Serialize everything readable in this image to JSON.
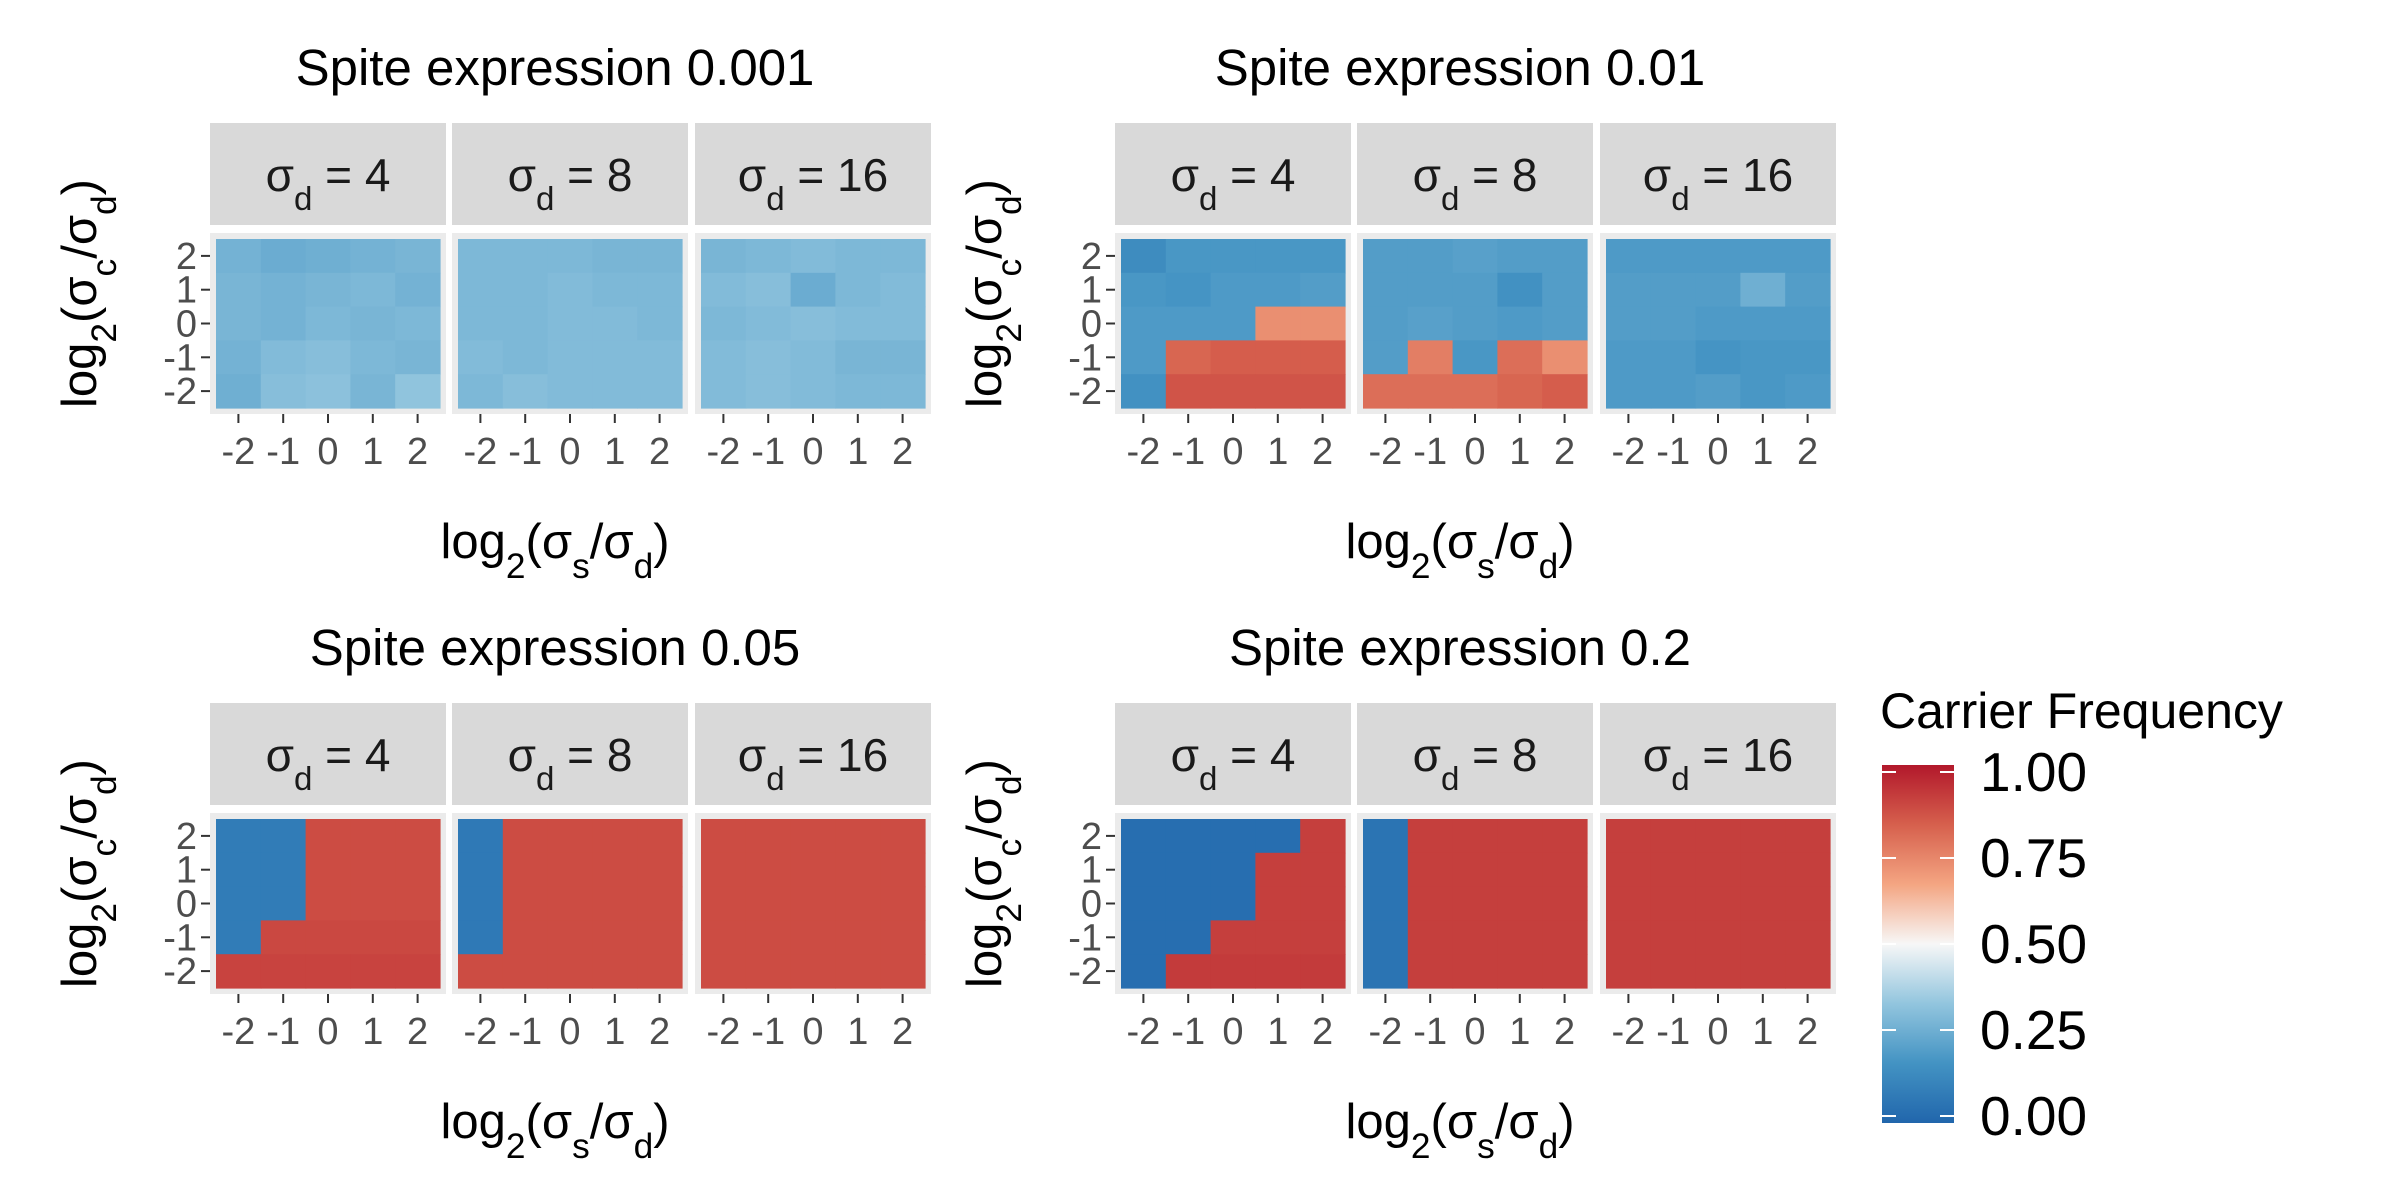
{
  "chart_data": {
    "type": "heatmap",
    "panels": [
      {
        "title": "Spite expression 0.001",
        "facets": [
          {
            "label": "σd = 4",
            "values": [
              [
                0.27,
                0.25,
                0.26,
                0.27,
                0.28
              ],
              [
                0.28,
                0.27,
                0.28,
                0.29,
                0.27
              ],
              [
                0.28,
                0.27,
                0.29,
                0.28,
                0.29
              ],
              [
                0.27,
                0.3,
                0.31,
                0.29,
                0.28
              ],
              [
                0.26,
                0.31,
                0.32,
                0.28,
                0.33
              ]
            ]
          },
          {
            "label": "σd = 8",
            "values": [
              [
                0.29,
                0.29,
                0.29,
                0.28,
                0.28
              ],
              [
                0.29,
                0.29,
                0.3,
                0.29,
                0.29
              ],
              [
                0.29,
                0.29,
                0.3,
                0.3,
                0.29
              ],
              [
                0.3,
                0.29,
                0.3,
                0.3,
                0.3
              ],
              [
                0.29,
                0.31,
                0.3,
                0.3,
                0.3
              ]
            ]
          },
          {
            "label": "σd = 16",
            "values": [
              [
                0.28,
                0.29,
                0.3,
                0.29,
                0.29
              ],
              [
                0.3,
                0.31,
                0.25,
                0.29,
                0.3
              ],
              [
                0.29,
                0.3,
                0.31,
                0.3,
                0.3
              ],
              [
                0.3,
                0.31,
                0.3,
                0.28,
                0.28
              ],
              [
                0.3,
                0.31,
                0.3,
                0.29,
                0.29
              ]
            ]
          }
        ]
      },
      {
        "title": "Spite expression 0.01",
        "facets": [
          {
            "label": "σd = 4",
            "values": [
              [
                0.14,
                0.18,
                0.18,
                0.18,
                0.18
              ],
              [
                0.18,
                0.17,
                0.19,
                0.19,
                0.2
              ],
              [
                0.19,
                0.19,
                0.19,
                0.72,
                0.72
              ],
              [
                0.19,
                0.82,
                0.84,
                0.84,
                0.84
              ],
              [
                0.16,
                0.86,
                0.86,
                0.86,
                0.86
              ]
            ]
          },
          {
            "label": "σd = 8",
            "values": [
              [
                0.2,
                0.2,
                0.21,
                0.2,
                0.2
              ],
              [
                0.2,
                0.2,
                0.2,
                0.16,
                0.2
              ],
              [
                0.2,
                0.21,
                0.2,
                0.19,
                0.2
              ],
              [
                0.2,
                0.76,
                0.18,
                0.8,
                0.72
              ],
              [
                0.8,
                0.8,
                0.8,
                0.82,
                0.84
              ]
            ]
          },
          {
            "label": "σd = 16",
            "values": [
              [
                0.19,
                0.19,
                0.19,
                0.19,
                0.19
              ],
              [
                0.2,
                0.2,
                0.2,
                0.26,
                0.2
              ],
              [
                0.2,
                0.2,
                0.19,
                0.19,
                0.19
              ],
              [
                0.19,
                0.19,
                0.17,
                0.18,
                0.18
              ],
              [
                0.19,
                0.19,
                0.2,
                0.18,
                0.19
              ]
            ]
          }
        ]
      },
      {
        "title": "Spite expression 0.05",
        "facets": [
          {
            "label": "σd = 4",
            "values": [
              [
                0.08,
                0.08,
                0.88,
                0.88,
                0.88
              ],
              [
                0.08,
                0.08,
                0.88,
                0.88,
                0.88
              ],
              [
                0.08,
                0.08,
                0.88,
                0.88,
                0.88
              ],
              [
                0.08,
                0.89,
                0.89,
                0.89,
                0.89
              ],
              [
                0.9,
                0.9,
                0.9,
                0.9,
                0.9
              ]
            ]
          },
          {
            "label": "σd = 8",
            "values": [
              [
                0.07,
                0.88,
                0.88,
                0.88,
                0.88
              ],
              [
                0.07,
                0.88,
                0.88,
                0.88,
                0.88
              ],
              [
                0.07,
                0.88,
                0.88,
                0.88,
                0.88
              ],
              [
                0.07,
                0.88,
                0.88,
                0.88,
                0.88
              ],
              [
                0.88,
                0.88,
                0.88,
                0.88,
                0.88
              ]
            ]
          },
          {
            "label": "σd = 16",
            "values": [
              [
                0.88,
                0.88,
                0.88,
                0.88,
                0.88
              ],
              [
                0.88,
                0.88,
                0.88,
                0.88,
                0.88
              ],
              [
                0.88,
                0.88,
                0.88,
                0.88,
                0.88
              ],
              [
                0.88,
                0.88,
                0.88,
                0.88,
                0.88
              ],
              [
                0.88,
                0.88,
                0.88,
                0.88,
                0.88
              ]
            ]
          }
        ]
      },
      {
        "title": "Spite expression 0.2",
        "facets": [
          {
            "label": "σd = 4",
            "values": [
              [
                0.03,
                0.03,
                0.03,
                0.03,
                0.91
              ],
              [
                0.03,
                0.03,
                0.03,
                0.91,
                0.91
              ],
              [
                0.03,
                0.03,
                0.03,
                0.91,
                0.91
              ],
              [
                0.03,
                0.03,
                0.91,
                0.91,
                0.91
              ],
              [
                0.03,
                0.92,
                0.92,
                0.92,
                0.92
              ]
            ]
          },
          {
            "label": "σd = 8",
            "values": [
              [
                0.05,
                0.91,
                0.91,
                0.91,
                0.91
              ],
              [
                0.05,
                0.91,
                0.91,
                0.91,
                0.91
              ],
              [
                0.05,
                0.91,
                0.91,
                0.91,
                0.91
              ],
              [
                0.05,
                0.91,
                0.91,
                0.91,
                0.91
              ],
              [
                0.05,
                0.91,
                0.91,
                0.91,
                0.91
              ]
            ]
          },
          {
            "label": "σd = 16",
            "values": [
              [
                0.91,
                0.91,
                0.91,
                0.91,
                0.91
              ],
              [
                0.91,
                0.91,
                0.91,
                0.91,
                0.91
              ],
              [
                0.91,
                0.91,
                0.91,
                0.91,
                0.91
              ],
              [
                0.91,
                0.91,
                0.91,
                0.91,
                0.91
              ],
              [
                0.91,
                0.91,
                0.91,
                0.91,
                0.91
              ]
            ]
          }
        ]
      }
    ],
    "x_ticks": [
      "-2",
      "-1",
      "0",
      "1",
      "2"
    ],
    "y_ticks": [
      "2",
      "1",
      "0",
      "-1",
      "-2"
    ],
    "xlabel": "log2(σs/σd)",
    "ylabel": "log2(σc/σd)",
    "legend": {
      "title": "Carrier Frequency",
      "ticks": [
        "1.00",
        "0.75",
        "0.50",
        "0.25",
        "0.00"
      ],
      "placement": "right",
      "colors": [
        "#2166ac",
        "#4393c3",
        "#92c5de",
        "#f7f7f7",
        "#f4a582",
        "#d6604d",
        "#b2182b"
      ]
    },
    "strip_fill": "#d9d9d9"
  }
}
